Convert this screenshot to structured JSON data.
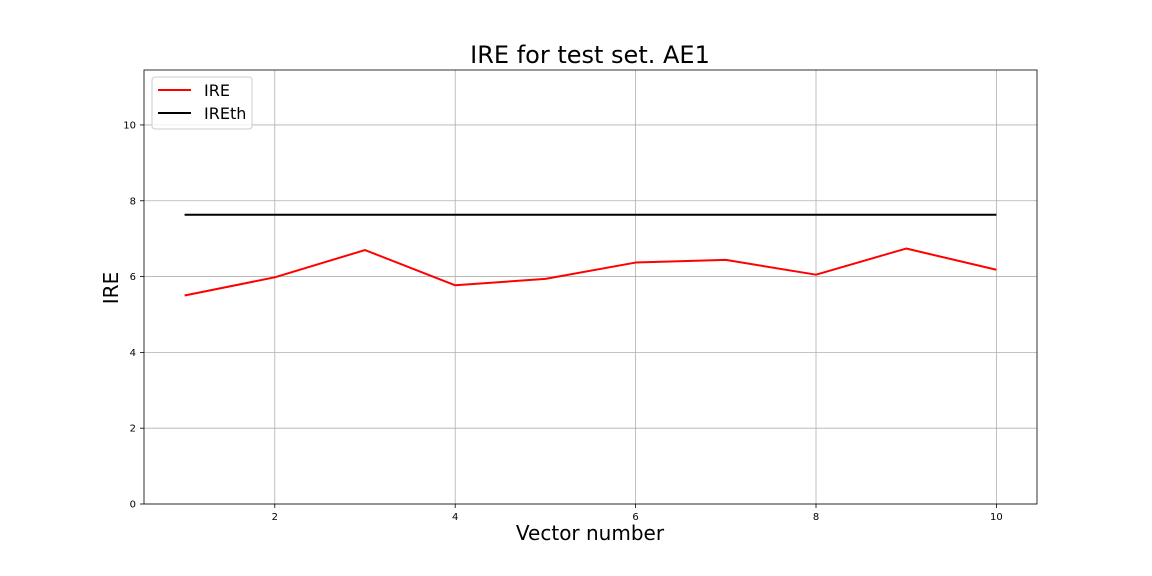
{
  "chart_data": {
    "type": "line",
    "title": "IRE for test set. AE1",
    "xlabel": "Vector number",
    "ylabel": "IRE",
    "xlim": [
      0.55,
      10.45
    ],
    "ylim": [
      0,
      11.45
    ],
    "xticks": [
      2,
      4,
      6,
      8,
      10
    ],
    "yticks": [
      0,
      2,
      4,
      6,
      8,
      10
    ],
    "grid": true,
    "legend_position": "top-left",
    "x": [
      1,
      2,
      3,
      4,
      5,
      6,
      7,
      8,
      9,
      10
    ],
    "series": [
      {
        "name": "IRE",
        "color": "#ff0000",
        "values": [
          5.5,
          5.98,
          6.7,
          5.77,
          5.94,
          6.37,
          6.44,
          6.05,
          6.74,
          6.18
        ]
      },
      {
        "name": "IREth",
        "color": "#000000",
        "values": [
          7.63,
          7.63,
          7.63,
          7.63,
          7.63,
          7.63,
          7.63,
          7.63,
          7.63,
          7.63
        ]
      }
    ]
  }
}
